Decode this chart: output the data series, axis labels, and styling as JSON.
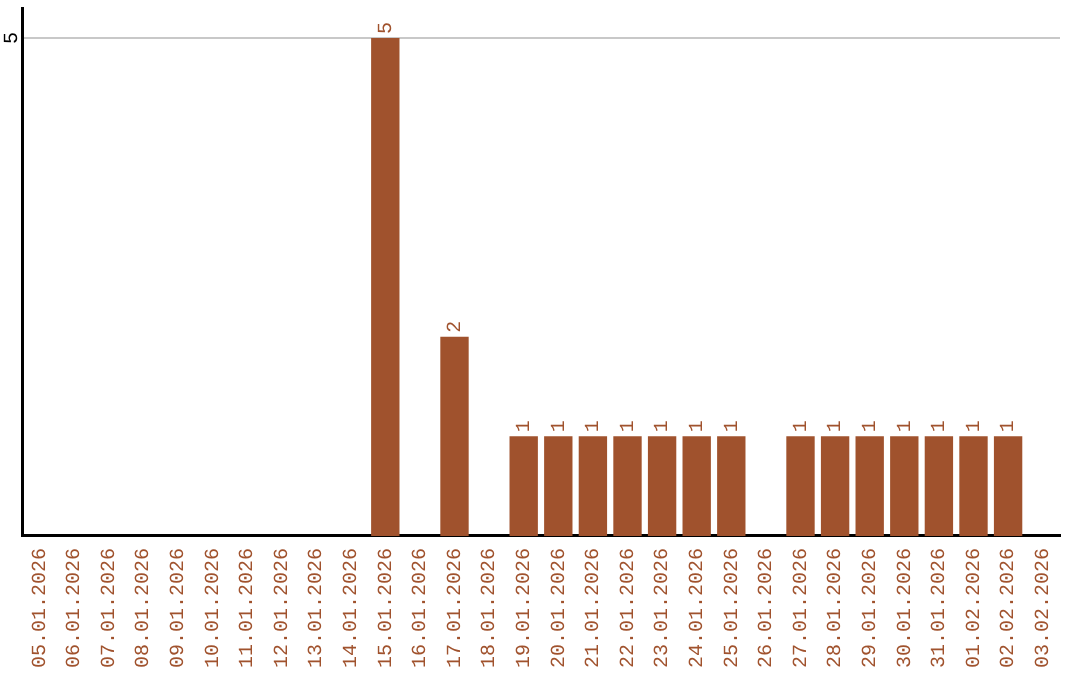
{
  "chart_data": {
    "type": "bar",
    "categories": [
      "05.01.2026",
      "06.01.2026",
      "07.01.2026",
      "08.01.2026",
      "09.01.2026",
      "10.01.2026",
      "11.01.2026",
      "12.01.2026",
      "13.01.2026",
      "14.01.2026",
      "15.01.2026",
      "16.01.2026",
      "17.01.2026",
      "18.01.2026",
      "19.01.2026",
      "20.01.2026",
      "21.01.2026",
      "22.01.2026",
      "23.01.2026",
      "24.01.2026",
      "25.01.2026",
      "26.01.2026",
      "27.01.2026",
      "28.01.2026",
      "29.01.2026",
      "30.01.2026",
      "31.01.2026",
      "01.02.2026",
      "02.02.2026",
      "03.02.2026"
    ],
    "values": [
      0,
      0,
      0,
      0,
      0,
      0,
      0,
      0,
      0,
      0,
      5,
      0,
      2,
      0,
      1,
      1,
      1,
      1,
      1,
      1,
      1,
      0,
      1,
      1,
      1,
      1,
      1,
      1,
      1,
      0
    ],
    "value_labels": [
      null,
      null,
      null,
      null,
      null,
      null,
      null,
      null,
      null,
      null,
      "5",
      null,
      "2",
      null,
      "1",
      "1",
      "1",
      "1",
      "1",
      "1",
      "1",
      null,
      "1",
      "1",
      "1",
      "1",
      "1",
      "1",
      "1",
      null
    ],
    "color": "#a0522d",
    "ylim": [
      0,
      5.3
    ],
    "yticks": [
      5
    ],
    "grid": "y",
    "legend": false
  }
}
